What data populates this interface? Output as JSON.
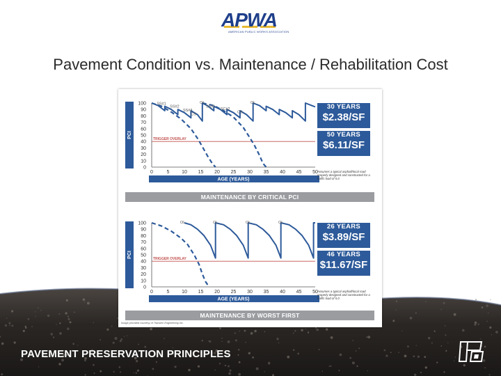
{
  "logo": {
    "text": "APWA",
    "subtext": "AMERICAN PUBLIC WORKS ASSOCIATION"
  },
  "slide_title": "Pavement Condition vs. Maintenance / Rehabilitation Cost",
  "footer": {
    "text": "PAVEMENT PRESERVATION PRINCIPLES",
    "corner_logo_icon": "pp-monogram-icon"
  },
  "figure_credit": "Image provided courtesy of Transtec Engineering Inc.",
  "colors": {
    "accent": "#2d5a9a",
    "trigger_line": "#c0504d",
    "banner": "#9a9ca0",
    "ground": "#2b2724"
  },
  "panels": [
    {
      "banner": "MAINTENANCE BY CRITICAL PCI",
      "note": "Assumes a typical asphalt/local road properly designed and constructed for a traffic load of 5.0",
      "cards": [
        {
          "years": "30 YEARS",
          "cost": "$2.38/SF"
        },
        {
          "years": "50 YEARS",
          "cost": "$6.11/SF"
        }
      ]
    },
    {
      "banner": "MAINTENANCE BY WORST FIRST",
      "note": "Assumes a typical asphalt/local road properly designed and constructed for a traffic load of 5.0",
      "cards": [
        {
          "years": "26 YEARS",
          "cost": "$3.89/SF"
        },
        {
          "years": "46 YEARS",
          "cost": "$11.67/SF"
        }
      ]
    }
  ],
  "chart_data": [
    {
      "type": "line",
      "xlabel": "AGE (YEARS)",
      "ylabel": "PCI",
      "xlim": [
        0,
        50
      ],
      "ylim": [
        0,
        100
      ],
      "x_ticks": [
        "0",
        "5",
        "10",
        "15",
        "20",
        "25",
        "30",
        "35",
        "40",
        "45",
        "50"
      ],
      "y_ticks": [
        "0",
        "10",
        "20",
        "30",
        "40",
        "50",
        "60",
        "70",
        "80",
        "90",
        "100"
      ],
      "grid": false,
      "trigger_line": {
        "label": "TRIGGER OVERLAY",
        "y": 40
      },
      "annotations": [
        {
          "label": "SS#1",
          "x": 3,
          "y": 96
        },
        {
          "label": "SS#2",
          "x": 7,
          "y": 92
        },
        {
          "label": "SS#3",
          "x": 11,
          "y": 86
        },
        {
          "label": "CS",
          "x": 12.8,
          "y": 80
        },
        {
          "label": "OL",
          "x": 15.5,
          "y": 98
        },
        {
          "label": "SS#1",
          "x": 18,
          "y": 92
        },
        {
          "label": "SC#2",
          "x": 22.5,
          "y": 88
        },
        {
          "label": "CS",
          "x": 27,
          "y": 83
        },
        {
          "label": "OL",
          "x": 31,
          "y": 98
        }
      ],
      "series": [
        {
          "style": "solid",
          "x": [
            0,
            2,
            4,
            4,
            6,
            8,
            8,
            10,
            12,
            12,
            14,
            15.5,
            15.5,
            17,
            19,
            19,
            21,
            23,
            23,
            25,
            27,
            27,
            29,
            31,
            31,
            33,
            35,
            35,
            37,
            39,
            39,
            41,
            43,
            43,
            45,
            47,
            47,
            49,
            50
          ],
          "y": [
            100,
            96,
            88,
            95,
            90,
            82,
            90,
            85,
            77,
            88,
            82,
            72,
            100,
            96,
            88,
            95,
            90,
            82,
            90,
            85,
            77,
            88,
            82,
            72,
            100,
            96,
            88,
            95,
            90,
            82,
            90,
            85,
            77,
            88,
            82,
            72,
            100,
            96,
            94
          ]
        },
        {
          "style": "dashed",
          "x": [
            0,
            3,
            6,
            9,
            12,
            14,
            15.5,
            17,
            18.5,
            19.5
          ],
          "y": [
            100,
            95,
            86,
            75,
            60,
            45,
            32,
            18,
            6,
            0
          ]
        },
        {
          "style": "dashed",
          "x": [
            15.5,
            19,
            22,
            25,
            28,
            30,
            31.5,
            33,
            34,
            35
          ],
          "y": [
            100,
            96,
            88,
            78,
            62,
            46,
            33,
            18,
            6,
            0
          ]
        }
      ]
    },
    {
      "type": "line",
      "xlabel": "AGE (YEARS)",
      "ylabel": "PCI",
      "xlim": [
        0,
        50
      ],
      "ylim": [
        0,
        100
      ],
      "x_ticks": [
        "0",
        "5",
        "10",
        "15",
        "20",
        "25",
        "30",
        "35",
        "40",
        "45",
        "50"
      ],
      "y_ticks": [
        "0",
        "10",
        "20",
        "30",
        "40",
        "50",
        "60",
        "70",
        "80",
        "90",
        "100"
      ],
      "grid": false,
      "trigger_line": {
        "label": "TRIGGER OVERLAY",
        "y": 40
      },
      "annotations": [
        {
          "label": "OL",
          "x": 9.5,
          "y": 98
        },
        {
          "label": "OL",
          "x": 19.5,
          "y": 98
        },
        {
          "label": "OL",
          "x": 29.5,
          "y": 98
        },
        {
          "label": "OL",
          "x": 39.5,
          "y": 98
        }
      ],
      "series": [
        {
          "style": "solid",
          "x": [
            10,
            12,
            14,
            16,
            18,
            19.5,
            19.5,
            22,
            24,
            26,
            28,
            29.5,
            29.5,
            32,
            34,
            36,
            38,
            39.5,
            39.5,
            42,
            44,
            46,
            48,
            49.5,
            49.5,
            50
          ],
          "y": [
            100,
            97,
            90,
            80,
            65,
            45,
            100,
            97,
            90,
            80,
            65,
            45,
            100,
            97,
            90,
            80,
            65,
            45,
            100,
            97,
            90,
            80,
            65,
            45,
            100,
            100
          ]
        },
        {
          "style": "dashed",
          "x": [
            0,
            3,
            6,
            9,
            11,
            13,
            14.5,
            15.5,
            16.5,
            17.5
          ],
          "y": [
            100,
            95,
            87,
            76,
            66,
            50,
            35,
            20,
            8,
            0
          ]
        }
      ]
    }
  ]
}
